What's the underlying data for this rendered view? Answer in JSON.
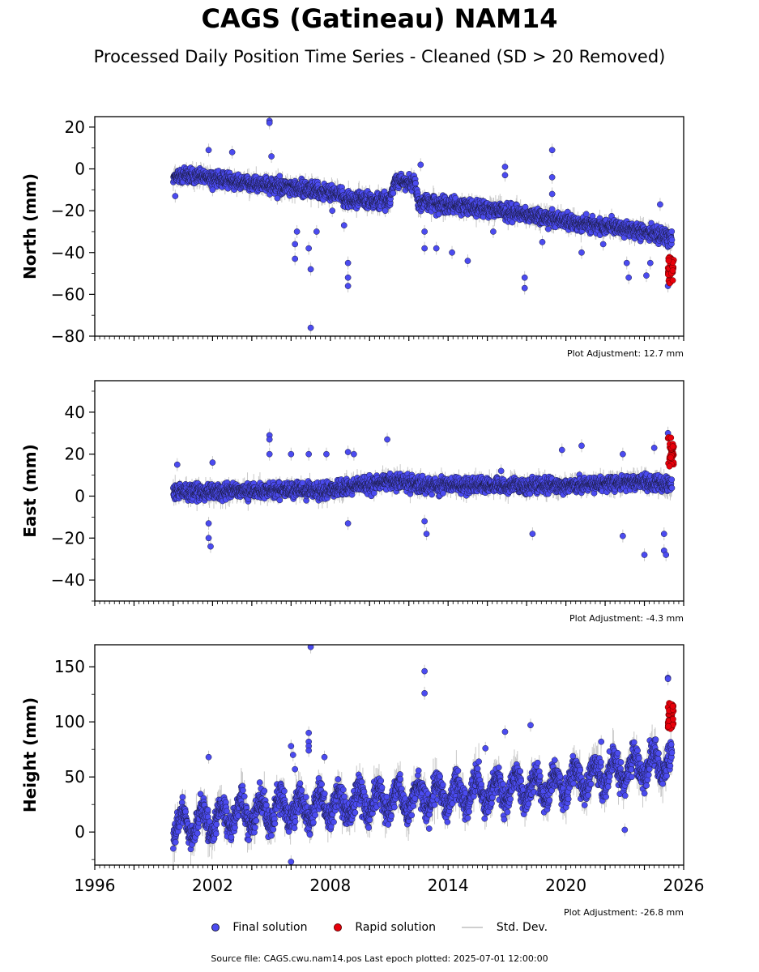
{
  "title": "CAGS (Gatineau) NAM14",
  "subtitle": "Processed Daily Position Time Series - Cleaned (SD > 20 Removed)",
  "footer": "Source file: CAGS.cwu.nam14.pos  Last epoch plotted: 2025-07-01 12:00:00",
  "legend": {
    "final": "Final solution",
    "rapid": "Rapid solution",
    "std": "Std. Dev."
  },
  "colors": {
    "final": "#4b4bf0",
    "rapid": "#e8000b",
    "std": "#c8c8c8",
    "edge": "#1a1a40"
  },
  "chart_data": [
    {
      "type": "scatter",
      "ylabel": "North (mm)",
      "adjustment": "Plot Adjustment: 12.7 mm",
      "xlim": [
        1996,
        2026
      ],
      "ylim": [
        -80,
        25
      ],
      "yticks": [
        20,
        0,
        -20,
        -40,
        -60,
        -80
      ],
      "ytick_labels": [
        "20",
        "0",
        "−20",
        "−40",
        "−60",
        "−80"
      ],
      "xticks": [
        1996,
        2002,
        2008,
        2014,
        2020,
        2026
      ],
      "xtick_labels": [
        "",
        "",
        "",
        "",
        "",
        ""
      ],
      "trend": [
        [
          2000.0,
          -3
        ],
        [
          2002.9,
          -5
        ],
        [
          2003.0,
          -6
        ],
        [
          2006.0,
          -9
        ],
        [
          2008.6,
          -12
        ],
        [
          2008.7,
          -15
        ],
        [
          2011.0,
          -15
        ],
        [
          2011.3,
          -6
        ],
        [
          2012.3,
          -6
        ],
        [
          2012.5,
          -16
        ],
        [
          2016.0,
          -19
        ],
        [
          2020.0,
          -25
        ],
        [
          2024.0,
          -30
        ],
        [
          2025.4,
          -33
        ]
      ],
      "outliers": [
        [
          2000.1,
          -13
        ],
        [
          2001.8,
          9
        ],
        [
          2002.0,
          -10
        ],
        [
          2003.0,
          8
        ],
        [
          2004.9,
          23
        ],
        [
          2004.9,
          22
        ],
        [
          2005.0,
          6
        ],
        [
          2005.3,
          -14
        ],
        [
          2006.2,
          -36
        ],
        [
          2006.2,
          -43
        ],
        [
          2006.3,
          -30
        ],
        [
          2006.9,
          -38
        ],
        [
          2007.0,
          -48
        ],
        [
          2007.0,
          -76
        ],
        [
          2007.3,
          -30
        ],
        [
          2008.1,
          -20
        ],
        [
          2008.7,
          -27
        ],
        [
          2008.9,
          -45
        ],
        [
          2008.9,
          -52
        ],
        [
          2008.9,
          -56
        ],
        [
          2010.8,
          -20
        ],
        [
          2012.6,
          2
        ],
        [
          2012.8,
          -30
        ],
        [
          2012.8,
          -38
        ],
        [
          2013.4,
          -38
        ],
        [
          2014.2,
          -40
        ],
        [
          2015.0,
          -44
        ],
        [
          2016.3,
          -30
        ],
        [
          2016.9,
          1
        ],
        [
          2016.9,
          -3
        ],
        [
          2017.9,
          -52
        ],
        [
          2017.9,
          -57
        ],
        [
          2018.8,
          -35
        ],
        [
          2019.3,
          -12
        ],
        [
          2019.3,
          9
        ],
        [
          2019.3,
          -4
        ],
        [
          2020.8,
          -40
        ],
        [
          2021.9,
          -36
        ],
        [
          2023.1,
          -45
        ],
        [
          2023.2,
          -52
        ],
        [
          2024.1,
          -51
        ],
        [
          2024.3,
          -45
        ],
        [
          2024.8,
          -17
        ],
        [
          2025.2,
          -56
        ]
      ],
      "rapid_x": [
        2025.2,
        2025.5
      ],
      "rapid_y": [
        -55,
        -42
      ],
      "spread": 2.6,
      "seed": 11
    },
    {
      "type": "scatter",
      "ylabel": "East (mm)",
      "adjustment": "Plot Adjustment: -4.3 mm",
      "xlim": [
        1996,
        2026
      ],
      "ylim": [
        -50,
        55
      ],
      "yticks": [
        40,
        20,
        0,
        -20,
        -40
      ],
      "ytick_labels": [
        "40",
        "20",
        "0",
        "−20",
        "−40"
      ],
      "xticks": [
        1996,
        2002,
        2008,
        2014,
        2020,
        2026
      ],
      "xtick_labels": [
        "",
        "",
        "",
        "",
        "",
        ""
      ],
      "trend": [
        [
          2000.0,
          2
        ],
        [
          2008.0,
          3
        ],
        [
          2011.0,
          7
        ],
        [
          2013.0,
          5
        ],
        [
          2016.0,
          5
        ],
        [
          2020.0,
          5
        ],
        [
          2024.0,
          7
        ],
        [
          2025.4,
          5
        ]
      ],
      "outliers": [
        [
          2000.2,
          15
        ],
        [
          2001.8,
          -13
        ],
        [
          2001.8,
          -20
        ],
        [
          2001.9,
          -24
        ],
        [
          2002.0,
          16
        ],
        [
          2004.9,
          29
        ],
        [
          2004.9,
          27
        ],
        [
          2004.9,
          20
        ],
        [
          2006.0,
          20
        ],
        [
          2006.9,
          20
        ],
        [
          2007.8,
          20
        ],
        [
          2008.9,
          21
        ],
        [
          2008.9,
          -13
        ],
        [
          2009.2,
          20
        ],
        [
          2010.9,
          27
        ],
        [
          2012.8,
          -12
        ],
        [
          2012.9,
          -18
        ],
        [
          2016.7,
          12
        ],
        [
          2018.3,
          -18
        ],
        [
          2019.8,
          22
        ],
        [
          2020.8,
          24
        ],
        [
          2022.9,
          20
        ],
        [
          2022.9,
          -19
        ],
        [
          2024.0,
          -28
        ],
        [
          2024.5,
          23
        ],
        [
          2025.0,
          -26
        ],
        [
          2025.1,
          -28
        ],
        [
          2025.2,
          30
        ],
        [
          2025.0,
          -18
        ]
      ],
      "rapid_x": [
        2025.2,
        2025.5
      ],
      "rapid_y": [
        14,
        28
      ],
      "spread": 2.6,
      "seed": 29
    },
    {
      "type": "scatter",
      "ylabel": "Height (mm)",
      "adjustment": "Plot Adjustment: -26.8 mm",
      "xlim": [
        1996,
        2026
      ],
      "ylim": [
        -30,
        170
      ],
      "yticks": [
        150,
        100,
        50,
        0
      ],
      "ytick_labels": [
        "150",
        "100",
        "50",
        "0"
      ],
      "xticks": [
        1996,
        2002,
        2008,
        2014,
        2020,
        2026
      ],
      "xtick_labels": [
        "1996",
        "2002",
        "2008",
        "2014",
        "2020",
        "2026"
      ],
      "trend": [
        [
          2000.0,
          5
        ],
        [
          2004.0,
          18
        ],
        [
          2008.0,
          25
        ],
        [
          2012.0,
          30
        ],
        [
          2014.0,
          33
        ],
        [
          2018.0,
          40
        ],
        [
          2020.0,
          45
        ],
        [
          2022.0,
          52
        ],
        [
          2024.0,
          60
        ],
        [
          2025.4,
          65
        ]
      ],
      "seasonal_amplitude": 12,
      "outliers": [
        [
          2001.8,
          68
        ],
        [
          2006.0,
          78
        ],
        [
          2006.1,
          70
        ],
        [
          2006.2,
          57
        ],
        [
          2006.0,
          -27
        ],
        [
          2006.9,
          90
        ],
        [
          2006.9,
          82
        ],
        [
          2006.9,
          78
        ],
        [
          2006.9,
          74
        ],
        [
          2007.0,
          168
        ],
        [
          2007.7,
          68
        ],
        [
          2012.8,
          146
        ],
        [
          2012.8,
          126
        ],
        [
          2015.9,
          76
        ],
        [
          2016.9,
          91
        ],
        [
          2018.2,
          97
        ],
        [
          2021.8,
          82
        ],
        [
          2023.0,
          2
        ],
        [
          2025.2,
          140
        ],
        [
          2025.2,
          139
        ]
      ],
      "rapid_x": [
        2025.2,
        2025.5
      ],
      "rapid_y": [
        92,
        117
      ],
      "spread": 9,
      "seed": 47
    }
  ]
}
